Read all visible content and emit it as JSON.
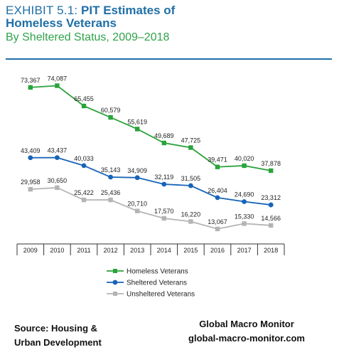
{
  "header": {
    "exhibit": "EXHIBIT 5.1:",
    "title_line1": "PIT Estimates of",
    "title_line2": "Homeless Veterans",
    "subtitle": "By Sheltered Status, 2009–2018"
  },
  "footer": {
    "source_line1": "Source:  Housing &",
    "source_line2": "Urban Development",
    "brand_line1": "Global Macro Monitor",
    "brand_line2": "global-macro-monitor.com"
  },
  "chart_data": {
    "type": "line",
    "categories": [
      "2009",
      "2010",
      "2011",
      "2012",
      "2013",
      "2014",
      "2015",
      "2016",
      "2017",
      "2018"
    ],
    "series": [
      {
        "name": "Homeless Veterans",
        "color": "#2aa33b",
        "marker": "square",
        "values": [
          73367,
          74087,
          65455,
          60579,
          55619,
          49689,
          47725,
          39471,
          40020,
          37878
        ],
        "labels": [
          "73,367",
          "74,087",
          "65,455",
          "60,579",
          "55,619",
          "49,689",
          "47,725",
          "39,471",
          "40,020",
          "37,878"
        ]
      },
      {
        "name": "Sheltered Veterans",
        "color": "#1763b8",
        "marker": "circle",
        "values": [
          43409,
          43437,
          40033,
          35143,
          34909,
          32119,
          31505,
          26404,
          24690,
          23312
        ],
        "labels": [
          "43,409",
          "43,437",
          "40,033",
          "35,143",
          "34,909",
          "32,119",
          "31,505",
          "26,404",
          "24,690",
          "23,312"
        ]
      },
      {
        "name": "Unsheltered Veterans",
        "color": "#b4b4b4",
        "marker": "square",
        "values": [
          29958,
          30650,
          25422,
          25436,
          20710,
          17570,
          16220,
          13067,
          15330,
          14566
        ],
        "labels": [
          "29,958",
          "30,650",
          "25,422",
          "25,436",
          "20,710",
          "17,570",
          "16,220",
          "13,067",
          "15,330",
          "14,566"
        ]
      }
    ],
    "legend_position": "bottom",
    "grid": false
  }
}
